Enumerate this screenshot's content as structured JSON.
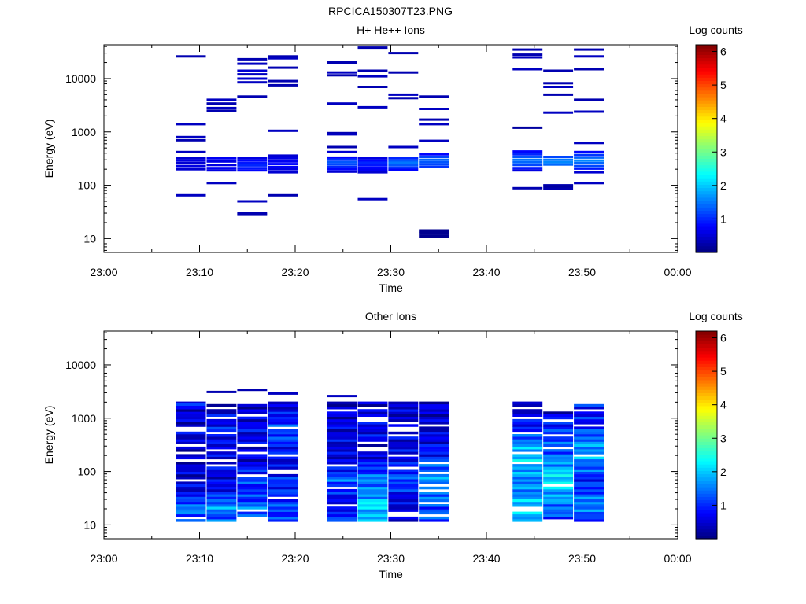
{
  "figure_title": "RPCICA150307T23.PNG",
  "colorbar": {
    "label": "Log counts",
    "ticks": [
      "1",
      "2",
      "3",
      "4",
      "5",
      "6"
    ],
    "range": [
      0,
      6.2
    ],
    "colormap": "jet"
  },
  "chart_data": [
    {
      "type": "heatmap",
      "title": "H+ He++ Ions",
      "xlabel": "Time",
      "ylabel": "Energy (eV)",
      "x_ticks": [
        "23:00",
        "23:10",
        "23:20",
        "23:30",
        "23:40",
        "23:50",
        "00:00"
      ],
      "y_ticks": [
        "10",
        "100",
        "1000",
        "10000"
      ],
      "y_scale": "log",
      "ylim": [
        5.5,
        43000
      ],
      "xlim_minutes": [
        0,
        60
      ],
      "colorbar_label": "Log counts",
      "time_bins_minutes": [
        [
          7.5,
          10.7
        ],
        [
          10.7,
          13.9
        ],
        [
          13.9,
          17.1
        ],
        [
          17.1,
          20.3
        ],
        [
          23.3,
          26.5
        ],
        [
          26.5,
          29.7
        ],
        [
          29.7,
          32.9
        ],
        [
          32.9,
          36.1
        ],
        [
          42.7,
          45.9
        ],
        [
          45.9,
          49.1
        ],
        [
          49.1,
          52.3
        ]
      ],
      "cells": [
        [
          [
            26000,
            0.3
          ],
          [
            1400,
            0.4
          ],
          [
            800,
            0.4
          ],
          [
            700,
            0.3
          ],
          [
            420,
            0.4
          ],
          [
            320,
            0.5
          ],
          [
            290,
            0.6
          ],
          [
            260,
            0.5
          ],
          [
            230,
            0.6
          ],
          [
            200,
            0.5
          ],
          [
            65,
            0.4
          ]
        ],
        [
          [
            4000,
            0.4
          ],
          [
            3400,
            0.3
          ],
          [
            2800,
            0.4
          ],
          [
            2500,
            0.3
          ],
          [
            320,
            0.7
          ],
          [
            280,
            0.6
          ],
          [
            240,
            0.6
          ],
          [
            210,
            0.7
          ],
          [
            190,
            0.6
          ],
          [
            110,
            0.4
          ]
        ],
        [
          [
            23000,
            0.3
          ],
          [
            19000,
            0.4
          ],
          [
            14000,
            0.5
          ],
          [
            12000,
            0.4
          ],
          [
            10000,
            0.5
          ],
          [
            8500,
            0.4
          ],
          [
            4600,
            0.3
          ],
          [
            320,
            0.6
          ],
          [
            290,
            0.8
          ],
          [
            260,
            0.9
          ],
          [
            235,
            1.0
          ],
          [
            210,
            0.9
          ],
          [
            190,
            0.8
          ],
          [
            50,
            0.4
          ],
          [
            30,
            0.3
          ],
          [
            28,
            0.3
          ]
        ],
        [
          [
            26000,
            0.3
          ],
          [
            24000,
            0.4
          ],
          [
            16000,
            0.3
          ],
          [
            9000,
            0.3
          ],
          [
            7500,
            0.3
          ],
          [
            1050,
            0.4
          ],
          [
            360,
            0.5
          ],
          [
            320,
            0.6
          ],
          [
            280,
            0.7
          ],
          [
            250,
            0.8
          ],
          [
            220,
            0.7
          ],
          [
            200,
            0.6
          ],
          [
            175,
            0.5
          ],
          [
            65,
            0.3
          ]
        ],
        [
          [
            20000,
            0.3
          ],
          [
            13000,
            0.4
          ],
          [
            11500,
            0.3
          ],
          [
            3400,
            0.4
          ],
          [
            950,
            0.3
          ],
          [
            900,
            0.4
          ],
          [
            520,
            0.3
          ],
          [
            420,
            0.5
          ],
          [
            330,
            0.8
          ],
          [
            300,
            1.1
          ],
          [
            270,
            1.3
          ],
          [
            245,
            1.2
          ],
          [
            220,
            1.0
          ],
          [
            200,
            0.8
          ],
          [
            180,
            0.5
          ]
        ],
        [
          [
            38000,
            0.3
          ],
          [
            14000,
            0.3
          ],
          [
            11000,
            0.4
          ],
          [
            7000,
            0.3
          ],
          [
            2900,
            0.4
          ],
          [
            320,
            0.6
          ],
          [
            290,
            0.8
          ],
          [
            265,
            1.0
          ],
          [
            240,
            0.9
          ],
          [
            215,
            0.8
          ],
          [
            195,
            0.7
          ],
          [
            175,
            0.5
          ],
          [
            55,
            0.4
          ]
        ],
        [
          [
            30000,
            0.3
          ],
          [
            13000,
            0.3
          ],
          [
            5000,
            0.4
          ],
          [
            4300,
            0.3
          ],
          [
            520,
            0.4
          ],
          [
            320,
            1.0
          ],
          [
            290,
            1.3
          ],
          [
            265,
            1.5
          ],
          [
            240,
            1.3
          ],
          [
            215,
            1.1
          ],
          [
            195,
            0.8
          ]
        ],
        [
          [
            4600,
            0.3
          ],
          [
            2700,
            0.4
          ],
          [
            1700,
            0.3
          ],
          [
            1400,
            0.4
          ],
          [
            680,
            0.4
          ],
          [
            380,
            0.8
          ],
          [
            340,
            1.2
          ],
          [
            300,
            1.4
          ],
          [
            270,
            1.3
          ],
          [
            245,
            1.2
          ],
          [
            220,
            1.1
          ],
          [
            14,
            0.1
          ],
          [
            12.5,
            0.1
          ],
          [
            11,
            0.1
          ]
        ],
        [
          [
            35000,
            0.3
          ],
          [
            28000,
            0.3
          ],
          [
            25000,
            0.4
          ],
          [
            15000,
            0.4
          ],
          [
            1200,
            0.2
          ],
          [
            430,
            0.8
          ],
          [
            380,
            1.0
          ],
          [
            340,
            1.3
          ],
          [
            300,
            1.5
          ],
          [
            270,
            1.4
          ],
          [
            240,
            1.2
          ],
          [
            210,
            0.9
          ],
          [
            190,
            0.6
          ],
          [
            88,
            0.3
          ]
        ],
        [
          [
            14000,
            0.3
          ],
          [
            8200,
            0.3
          ],
          [
            7000,
            0.4
          ],
          [
            5000,
            0.3
          ],
          [
            2300,
            0.4
          ],
          [
            340,
            1.2
          ],
          [
            300,
            1.5
          ],
          [
            270,
            1.6
          ],
          [
            245,
            1.4
          ],
          [
            100,
            0.3
          ],
          [
            95,
            0.2
          ],
          [
            86,
            0.3
          ]
        ],
        [
          [
            35000,
            0.3
          ],
          [
            26000,
            0.4
          ],
          [
            15000,
            0.3
          ],
          [
            4000,
            0.3
          ],
          [
            2400,
            0.4
          ],
          [
            620,
            0.4
          ],
          [
            420,
            0.8
          ],
          [
            370,
            1.1
          ],
          [
            330,
            1.4
          ],
          [
            290,
            1.6
          ],
          [
            260,
            1.4
          ],
          [
            230,
            1.2
          ],
          [
            205,
            0.9
          ],
          [
            175,
            0.5
          ],
          [
            110,
            0.4
          ]
        ]
      ]
    },
    {
      "type": "heatmap",
      "title": "Other Ions",
      "xlabel": "Time",
      "ylabel": "Energy (eV)",
      "x_ticks": [
        "23:00",
        "23:10",
        "23:20",
        "23:30",
        "23:40",
        "23:50",
        "00:00"
      ],
      "y_ticks": [
        "10",
        "100",
        "1000",
        "10000"
      ],
      "y_scale": "log",
      "ylim": [
        5.5,
        43000
      ],
      "xlim_minutes": [
        0,
        60
      ],
      "colorbar_label": "Log counts",
      "time_bins_minutes": [
        [
          7.5,
          10.7
        ],
        [
          10.7,
          13.9
        ],
        [
          13.9,
          17.1
        ],
        [
          17.1,
          20.3
        ],
        [
          23.3,
          26.5
        ],
        [
          26.5,
          29.7
        ],
        [
          29.7,
          32.9
        ],
        [
          32.9,
          36.1
        ],
        [
          42.7,
          45.9
        ],
        [
          45.9,
          49.1
        ],
        [
          49.1,
          52.3
        ]
      ],
      "emin": 11.5,
      "emax": 2050,
      "nbins": 48,
      "profiles": [
        [
          [
            11.5,
            0.5,
            1.4
          ],
          [
            13.2,
            0.55,
            1.4
          ],
          [
            16,
            0.55,
            1.3
          ],
          [
            22,
            0.65,
            1.6
          ],
          [
            30,
            0.7,
            1.0
          ],
          [
            45,
            0.6,
            0.6
          ],
          [
            70,
            0.55,
            0.5
          ],
          [
            100,
            0.55,
            0.5
          ],
          [
            200,
            0.55,
            0.5
          ],
          [
            400,
            0.55,
            0.6
          ],
          [
            800,
            0.55,
            0.5
          ],
          [
            2050,
            0.55,
            0.6
          ]
        ],
        [
          [
            16,
            0.6,
            1.3
          ],
          [
            22,
            0.6,
            1.7
          ],
          [
            30,
            0.6,
            1.2
          ],
          [
            50,
            0.6,
            0.7
          ],
          [
            90,
            0.55,
            0.6
          ],
          [
            160,
            0.55,
            0.5
          ],
          [
            300,
            0.5,
            0.6
          ],
          [
            600,
            0.55,
            0.9
          ],
          [
            1000,
            0.55,
            0.6
          ],
          [
            1500,
            0.5,
            0.4
          ]
        ],
        [
          [
            16,
            0.6,
            1.4
          ],
          [
            22,
            0.6,
            1.6
          ],
          [
            30,
            0.65,
            1.1
          ],
          [
            50,
            0.6,
            1.0
          ],
          [
            80,
            0.6,
            1.2
          ],
          [
            140,
            0.55,
            0.6
          ],
          [
            300,
            0.55,
            0.5
          ],
          [
            700,
            0.55,
            0.7
          ],
          [
            1700,
            0.5,
            0.5
          ]
        ],
        [
          [
            16,
            0.6,
            1.1
          ],
          [
            24,
            0.6,
            1.2
          ],
          [
            40,
            0.6,
            1.0
          ],
          [
            70,
            0.6,
            1.0
          ],
          [
            120,
            0.55,
            0.6
          ],
          [
            250,
            0.55,
            0.8
          ],
          [
            500,
            0.55,
            1.2
          ],
          [
            900,
            0.55,
            1.0
          ],
          [
            1450,
            0.5,
            0.6
          ]
        ],
        [
          [
            16,
            0.55,
            1.0
          ],
          [
            25,
            0.55,
            0.7
          ],
          [
            40,
            0.55,
            0.8
          ],
          [
            70,
            0.65,
            1.4
          ],
          [
            100,
            0.6,
            1.0
          ],
          [
            200,
            0.55,
            0.5
          ],
          [
            400,
            0.55,
            0.6
          ],
          [
            800,
            0.55,
            0.6
          ],
          [
            1700,
            0.5,
            0.4
          ]
        ],
        [
          [
            16,
            0.6,
            1.8
          ],
          [
            25,
            0.65,
            2.2
          ],
          [
            40,
            0.65,
            1.5
          ],
          [
            70,
            0.65,
            1.6
          ],
          [
            100,
            0.6,
            1.1
          ],
          [
            200,
            0.55,
            0.6
          ],
          [
            500,
            0.55,
            0.7
          ],
          [
            1000,
            0.5,
            0.5
          ]
        ],
        [
          [
            16,
            0.5,
            0.6
          ],
          [
            25,
            0.5,
            0.5
          ],
          [
            40,
            0.55,
            0.8
          ],
          [
            70,
            0.6,
            1.3
          ],
          [
            100,
            0.6,
            0.9
          ],
          [
            200,
            0.55,
            0.6
          ],
          [
            500,
            0.5,
            0.5
          ],
          [
            1000,
            0.5,
            0.5
          ]
        ],
        [
          [
            16,
            0.6,
            1.2
          ],
          [
            25,
            0.6,
            1.3
          ],
          [
            40,
            0.6,
            1.6
          ],
          [
            70,
            0.6,
            1.8
          ],
          [
            120,
            0.6,
            1.4
          ],
          [
            200,
            0.55,
            0.9
          ],
          [
            400,
            0.5,
            0.6
          ],
          [
            800,
            0.5,
            0.5
          ],
          [
            1500,
            0.5,
            0.5
          ]
        ],
        [
          [
            16,
            0.6,
            1.8
          ],
          [
            25,
            0.6,
            1.9
          ],
          [
            40,
            0.6,
            1.6
          ],
          [
            70,
            0.6,
            1.6
          ],
          [
            120,
            0.6,
            1.8
          ],
          [
            200,
            0.6,
            2.0
          ],
          [
            350,
            0.6,
            1.6
          ],
          [
            600,
            0.55,
            1.0
          ],
          [
            1000,
            0.5,
            0.6
          ],
          [
            1600,
            0.5,
            0.5
          ]
        ],
        [
          [
            16,
            0.6,
            1.2
          ],
          [
            25,
            0.6,
            1.6
          ],
          [
            40,
            0.6,
            1.8
          ],
          [
            70,
            0.65,
            2.2
          ],
          [
            100,
            0.65,
            2.0
          ],
          [
            200,
            0.6,
            1.4
          ],
          [
            400,
            0.6,
            1.3
          ],
          [
            700,
            0.55,
            1.0
          ],
          [
            1200,
            0.5,
            0.6
          ]
        ],
        [
          [
            16,
            0.6,
            1.2
          ],
          [
            25,
            0.6,
            1.7
          ],
          [
            40,
            0.6,
            1.2
          ],
          [
            70,
            0.6,
            0.9
          ],
          [
            120,
            0.6,
            1.4
          ],
          [
            200,
            0.6,
            1.7
          ],
          [
            350,
            0.6,
            1.6
          ],
          [
            600,
            0.55,
            1.1
          ],
          [
            850,
            0.55,
            0.8
          ]
        ]
      ],
      "sparse_lines": [
        [
          1800,
          1.2
        ],
        [
          3100,
          0.3
        ],
        [
          3400,
          0.3
        ],
        [
          2900,
          0.4
        ],
        [
          2600,
          0.4
        ]
      ]
    }
  ]
}
